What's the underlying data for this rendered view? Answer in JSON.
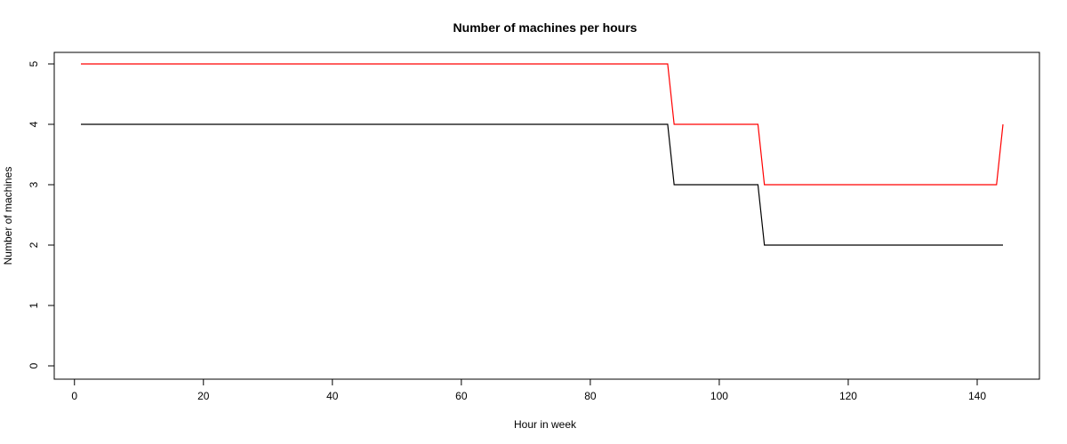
{
  "chart_data": {
    "type": "line",
    "title": "Number of machines per hours",
    "xlabel": "Hour in week",
    "ylabel": "Number of machines",
    "xlim": [
      1,
      144
    ],
    "ylim": [
      0,
      5
    ],
    "x_ticks": [
      0,
      20,
      40,
      60,
      80,
      100,
      120,
      140
    ],
    "y_ticks": [
      0,
      1,
      2,
      3,
      4,
      5
    ],
    "grid": false,
    "legend": "none",
    "series": [
      {
        "color": "#000000",
        "x": [
          1,
          92,
          93,
          106,
          107,
          144
        ],
        "y": [
          4,
          4,
          3,
          3,
          2,
          2
        ]
      },
      {
        "color": "#ff0000",
        "x": [
          1,
          92,
          93,
          106,
          107,
          143,
          144
        ],
        "y": [
          5,
          5,
          4,
          4,
          3,
          3,
          4
        ]
      }
    ]
  }
}
